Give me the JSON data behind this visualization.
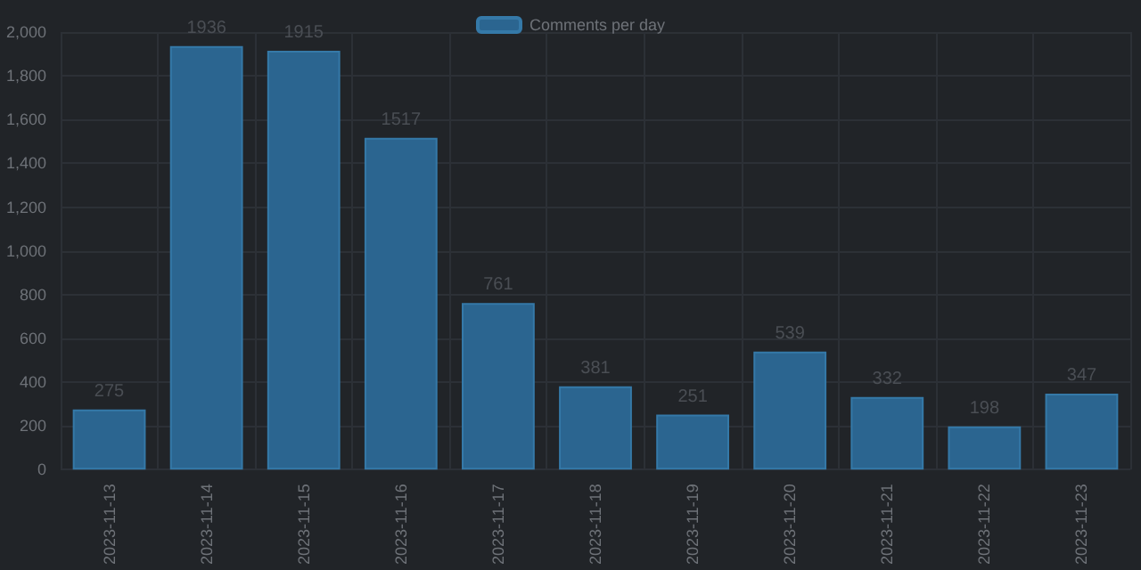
{
  "chart_data": {
    "type": "bar",
    "categories": [
      "2023-11-13",
      "2023-11-14",
      "2023-11-15",
      "2023-11-16",
      "2023-11-17",
      "2023-11-18",
      "2023-11-19",
      "2023-11-20",
      "2023-11-21",
      "2023-11-22",
      "2023-11-23"
    ],
    "series": [
      {
        "name": "Comments per day",
        "color": "#2b6590",
        "values": [
          275,
          1936,
          1915,
          1517,
          761,
          381,
          251,
          539,
          332,
          198,
          347
        ]
      }
    ],
    "ylim": [
      0,
      2000
    ],
    "yticks": [
      0,
      200,
      400,
      600,
      800,
      {
        "value": 1000,
        "label": "1,000"
      },
      {
        "value": 1200,
        "label": "1,200"
      },
      {
        "value": 1400,
        "label": "1,400"
      },
      {
        "value": 1600,
        "label": "1,600"
      },
      {
        "value": 1800,
        "label": "1,800"
      },
      {
        "value": 2000,
        "label": "2,000"
      }
    ],
    "data_labels": true,
    "grid": true,
    "legend": "top"
  }
}
